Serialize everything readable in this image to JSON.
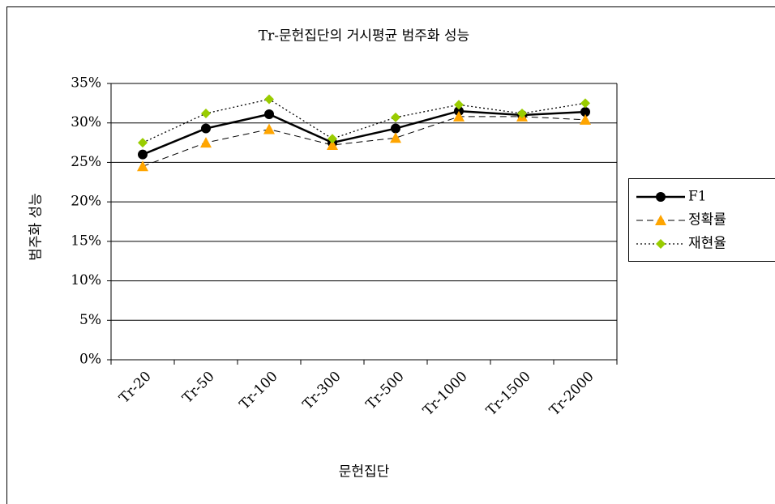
{
  "chart_data": {
    "type": "line",
    "title": "Tr-문헌집단의 거시평균 범주화 성능",
    "x_label": "문헌집단",
    "y_label": "범주화 성능",
    "categories": [
      "Tr-20",
      "Tr-50",
      "Tr-100",
      "Tr-300",
      "Tr-500",
      "Tr-1000",
      "Tr-1500",
      "Tr-2000"
    ],
    "series": [
      {
        "name": "F1",
        "color": "#000000",
        "marker_color": "#000000",
        "marker": "circle",
        "style": "solid",
        "values": [
          26.0,
          29.3,
          31.1,
          27.5,
          29.3,
          31.5,
          31.0,
          31.4
        ]
      },
      {
        "name": "정확률",
        "color": "#000000",
        "marker_color": "#ffa500",
        "marker": "triangle",
        "style": "dashed",
        "values": [
          24.5,
          27.5,
          29.2,
          27.2,
          28.1,
          30.8,
          30.8,
          30.4
        ]
      },
      {
        "name": "재현율",
        "color": "#000000",
        "marker_color": "#99cc00",
        "marker": "diamond",
        "style": "dotted",
        "values": [
          27.5,
          31.2,
          33.0,
          28.0,
          30.7,
          32.3,
          31.2,
          32.5
        ]
      }
    ],
    "ylim": [
      0,
      35
    ],
    "yticks": [
      {
        "value": 0,
        "label": "0%"
      },
      {
        "value": 5,
        "label": "5%"
      },
      {
        "value": 10,
        "label": "10%"
      },
      {
        "value": 15,
        "label": "15%"
      },
      {
        "value": 20,
        "label": "20%"
      },
      {
        "value": 25,
        "label": "25%"
      },
      {
        "value": 30,
        "label": "30%"
      },
      {
        "value": 35,
        "label": "35%"
      }
    ],
    "grid": true,
    "legend": "right"
  }
}
